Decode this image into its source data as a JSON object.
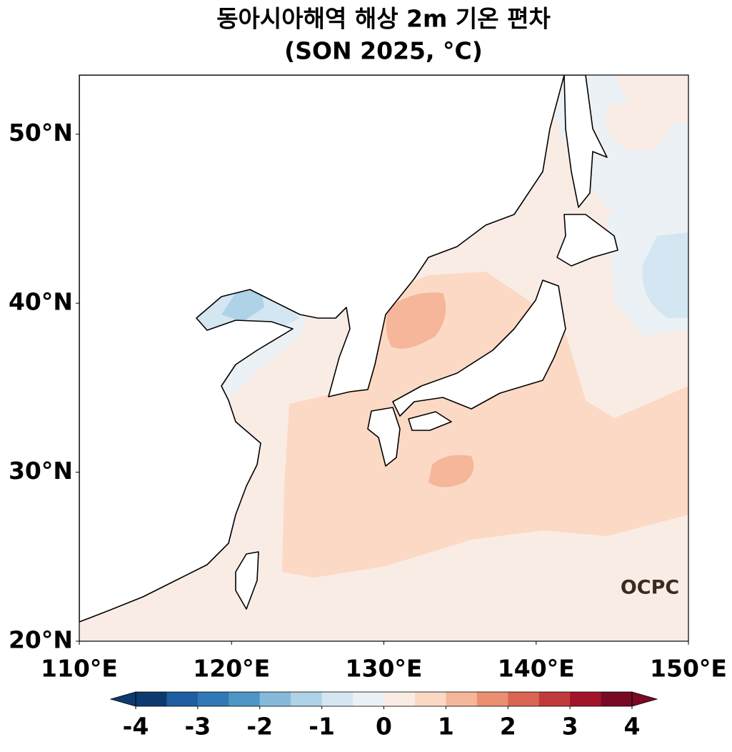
{
  "chart_data": {
    "type": "map",
    "title": "동아시아해역 해상 2m 기온 편차",
    "subtitle": "(SON 2025, °C)",
    "xlim": [
      110,
      150
    ],
    "ylim": [
      20,
      53.5
    ],
    "xticks": [
      {
        "value": 110,
        "label": "110°E"
      },
      {
        "value": 120,
        "label": "120°E"
      },
      {
        "value": 130,
        "label": "130°E"
      },
      {
        "value": 140,
        "label": "140°E"
      },
      {
        "value": 150,
        "label": "150°E"
      }
    ],
    "yticks": [
      {
        "value": 20,
        "label": "20°N"
      },
      {
        "value": 30,
        "label": "30°N"
      },
      {
        "value": 40,
        "label": "40°N"
      },
      {
        "value": 50,
        "label": "50°N"
      }
    ],
    "colorbar": {
      "lim": [
        -4,
        4
      ],
      "ticks": [
        -4,
        -3,
        -2,
        -1,
        0,
        1,
        2,
        3,
        4
      ],
      "colors": [
        "#0d3a6e",
        "#1d5fa2",
        "#3079b6",
        "#4e96c5",
        "#86bada",
        "#aed2e6",
        "#d3e6f1",
        "#ebf1f4",
        "#f9ece4",
        "#fcd9c5",
        "#f6b699",
        "#ea9071",
        "#d96652",
        "#c13b3c",
        "#a3142b",
        "#780a24"
      ],
      "extend": "both"
    },
    "logo": "OCPC"
  }
}
